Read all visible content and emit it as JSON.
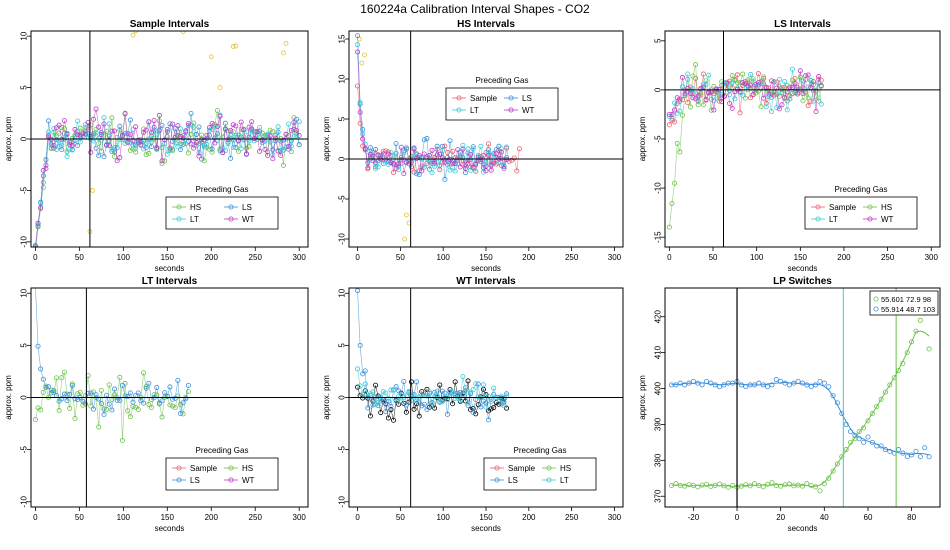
{
  "figure": {
    "title": "160224a   Calibration Interval Shapes - CO2"
  },
  "colors": {
    "Sample": "#e8616f",
    "HS": "#6cc24a",
    "LS": "#3b8fd9",
    "LT": "#3cc9d6",
    "WT": "#c03ac8",
    "yellow": "#e8c22a",
    "black": "#000000",
    "axis": "#000000"
  },
  "chart_data": [
    {
      "type": "scatter",
      "title": "Sample Intervals",
      "xlabel": "seconds",
      "ylabel": "approx. ppm",
      "xlim": [
        -5,
        310
      ],
      "ylim": [
        -10.5,
        10.5
      ],
      "xticks": [
        0,
        50,
        100,
        150,
        200,
        250,
        300
      ],
      "yticks": [
        -10,
        -5,
        0,
        5,
        10
      ],
      "vline": 62,
      "hline": 0,
      "legend": {
        "title": "Preceding Gas",
        "position": "bottom-right",
        "entries": [
          "HS",
          "LS",
          "LT",
          "WT"
        ]
      },
      "series": [
        {
          "name": "HS",
          "t_end": 300,
          "start": -10.5,
          "rise_end": 15,
          "noise": 1.0
        },
        {
          "name": "LS",
          "t_end": 300,
          "start": -10.5,
          "rise_end": 15,
          "noise": 0.9
        },
        {
          "name": "LT",
          "t_end": 300,
          "start": -10.5,
          "rise_end": 15,
          "noise": 0.9
        },
        {
          "name": "WT",
          "t_end": 300,
          "start": -10.5,
          "rise_end": 15,
          "noise": 1.2
        }
      ]
    },
    {
      "type": "scatter",
      "title": "HS Intervals",
      "xlabel": "seconds",
      "ylabel": "approx. ppm",
      "xlim": [
        -10,
        310
      ],
      "ylim": [
        -11,
        16
      ],
      "xticks": [
        0,
        50,
        100,
        150,
        200,
        250,
        300
      ],
      "yticks": [
        -10,
        -5,
        0,
        5,
        10,
        15
      ],
      "vline": 62,
      "hline": 0,
      "legend": {
        "title": "Preceding Gas",
        "position": "top-center",
        "entries": [
          "Sample",
          "LS",
          "LT",
          "WT"
        ]
      },
      "series": [
        {
          "name": "Sample",
          "t_end": 190,
          "start": 9,
          "decay": 4,
          "noise": 0.9
        },
        {
          "name": "LS",
          "t_end": 175,
          "start": 15,
          "decay": 4,
          "noise": 1.0
        },
        {
          "name": "LT",
          "t_end": 175,
          "start": 14,
          "decay": 4,
          "noise": 0.8
        },
        {
          "name": "WT",
          "t_end": 175,
          "start": 13,
          "decay": 4,
          "noise": 0.8
        }
      ]
    },
    {
      "type": "scatter",
      "title": "LS Intervals",
      "xlabel": "seconds",
      "ylabel": "approx. ppm",
      "xlim": [
        -5,
        310
      ],
      "ylim": [
        -16,
        6
      ],
      "xticks": [
        0,
        50,
        100,
        150,
        200,
        250,
        300
      ],
      "yticks": [
        -15,
        -10,
        -5,
        0,
        5
      ],
      "vline": 62,
      "hline": 0,
      "legend": {
        "title": "Preceding Gas",
        "position": "bottom-right",
        "entries": [
          "Sample",
          "HS",
          "LT",
          "WT"
        ]
      },
      "series": [
        {
          "name": "Sample",
          "t_end": 175,
          "start": -4,
          "rise_end": 15,
          "noise": 1.0
        },
        {
          "name": "HS",
          "t_end": 175,
          "start": -14,
          "rise_end": 18,
          "noise": 1.0
        },
        {
          "name": "LT",
          "t_end": 175,
          "start": -3,
          "rise_end": 15,
          "noise": 0.9
        },
        {
          "name": "WT",
          "t_end": 175,
          "start": -3,
          "rise_end": 15,
          "noise": 0.9
        }
      ]
    },
    {
      "type": "scatter",
      "title": "LT Intervals",
      "xlabel": "seconds",
      "ylabel": "approx. ppm",
      "xlim": [
        -5,
        310
      ],
      "ylim": [
        -10.5,
        10.5
      ],
      "xticks": [
        0,
        50,
        100,
        150,
        200,
        250,
        300
      ],
      "yticks": [
        -10,
        -5,
        0,
        5,
        10
      ],
      "vline": 58,
      "hline": 0,
      "legend": {
        "title": "Preceding Gas",
        "position": "bottom-right",
        "entries": [
          "Sample",
          "HS",
          "LS",
          "WT"
        ]
      },
      "series": [
        {
          "name": "HS",
          "t_end": 175,
          "start": -2,
          "rise_end": 10,
          "noise": 1.3
        },
        {
          "name": "LS",
          "t_end": 175,
          "start": 10.5,
          "decay": 4,
          "noise": 0.7
        }
      ]
    },
    {
      "type": "scatter",
      "title": "WT Intervals",
      "xlabel": "seconds",
      "ylabel": "approx. ppm",
      "xlim": [
        -10,
        310
      ],
      "ylim": [
        -10.5,
        10.5
      ],
      "xticks": [
        0,
        50,
        100,
        150,
        200,
        250,
        300
      ],
      "yticks": [
        -10,
        -5,
        0,
        5,
        10
      ],
      "vline": 62,
      "hline": 0,
      "legend": {
        "title": "Preceding Gas",
        "position": "bottom-right",
        "entries": [
          "Sample",
          "HS",
          "LS",
          "LT"
        ]
      },
      "series": [
        {
          "name": "black",
          "t_end": 175,
          "start": 1,
          "decay": 4,
          "noise": 0.8
        },
        {
          "name": "LS",
          "t_end": 175,
          "start": 10.5,
          "decay": 4,
          "noise": 0.8
        },
        {
          "name": "LT",
          "t_end": 175,
          "start": 3,
          "decay": 4,
          "noise": 0.7
        }
      ]
    },
    {
      "type": "line",
      "title": "LP Switches",
      "xlabel": "seconds",
      "ylabel": "approx. ppm",
      "xlim": [
        -33,
        93
      ],
      "ylim": [
        367,
        428
      ],
      "xticks": [
        -20,
        0,
        20,
        40,
        60,
        80
      ],
      "yticks": [
        370,
        380,
        390,
        400,
        410,
        420
      ],
      "vlines": [
        {
          "x": 0,
          "color": "black"
        },
        {
          "x": 48.7,
          "color": "LT"
        },
        {
          "x": 72.9,
          "color": "HS"
        }
      ],
      "legend": {
        "position": "top-right",
        "entries": [
          "55.601 72.9 98",
          "55.914 48.7 103"
        ]
      },
      "series": [
        {
          "name": "HS",
          "x": [
            -30,
            -28,
            -26,
            -24,
            -22,
            -20,
            -18,
            -16,
            -14,
            -12,
            -10,
            -8,
            -6,
            -4,
            -2,
            0,
            2,
            4,
            6,
            8,
            10,
            12,
            14,
            16,
            18,
            20,
            22,
            24,
            26,
            28,
            30,
            32,
            34,
            36,
            38,
            40,
            42,
            44,
            46,
            48,
            50,
            52,
            54,
            56,
            58,
            60,
            62,
            64,
            66,
            68,
            70,
            72,
            74,
            76,
            78,
            80,
            82,
            84,
            86,
            88
          ],
          "y": [
            373,
            373.5,
            373,
            372.8,
            373.2,
            373,
            372.6,
            373.1,
            373.3,
            372.7,
            373,
            373.4,
            372.9,
            372.5,
            373,
            372.5,
            372.8,
            373.2,
            372.9,
            373.5,
            373,
            372.6,
            373.3,
            373.8,
            373,
            372.8,
            373.2,
            373.4,
            372.9,
            373.1,
            372.8,
            373.5,
            373,
            372.6,
            371.5,
            373.5,
            375,
            377,
            379,
            381,
            383,
            385,
            386,
            388,
            389,
            391,
            393,
            395,
            397,
            399,
            401,
            403,
            405,
            407,
            410,
            413,
            416,
            419,
            421,
            411
          ]
        },
        {
          "name": "LS",
          "x": [
            -30,
            -28,
            -26,
            -24,
            -22,
            -20,
            -18,
            -16,
            -14,
            -12,
            -10,
            -8,
            -6,
            -4,
            -2,
            0,
            2,
            4,
            6,
            8,
            10,
            12,
            14,
            16,
            18,
            20,
            22,
            24,
            26,
            28,
            30,
            32,
            34,
            36,
            38,
            40,
            42,
            44,
            46,
            48,
            50,
            52,
            54,
            56,
            58,
            60,
            62,
            64,
            66,
            68,
            70,
            72,
            74,
            76,
            78,
            80,
            82,
            84,
            86,
            88
          ],
          "y": [
            401,
            401,
            401.5,
            401,
            401.5,
            402,
            401.5,
            401,
            402,
            401.5,
            401,
            400.5,
            401,
            401.5,
            401.5,
            402,
            401,
            400.5,
            401,
            401,
            401.5,
            401,
            400.5,
            401,
            402.5,
            402,
            401.5,
            401,
            401.5,
            402,
            401.5,
            401,
            400.5,
            401,
            402,
            401.5,
            400.5,
            398,
            396,
            393,
            390,
            388,
            387,
            386,
            385,
            386.5,
            385,
            384,
            384,
            383,
            382.5,
            382,
            383,
            382,
            381,
            381.5,
            382.5,
            381,
            383.5,
            381
          ]
        }
      ]
    }
  ]
}
